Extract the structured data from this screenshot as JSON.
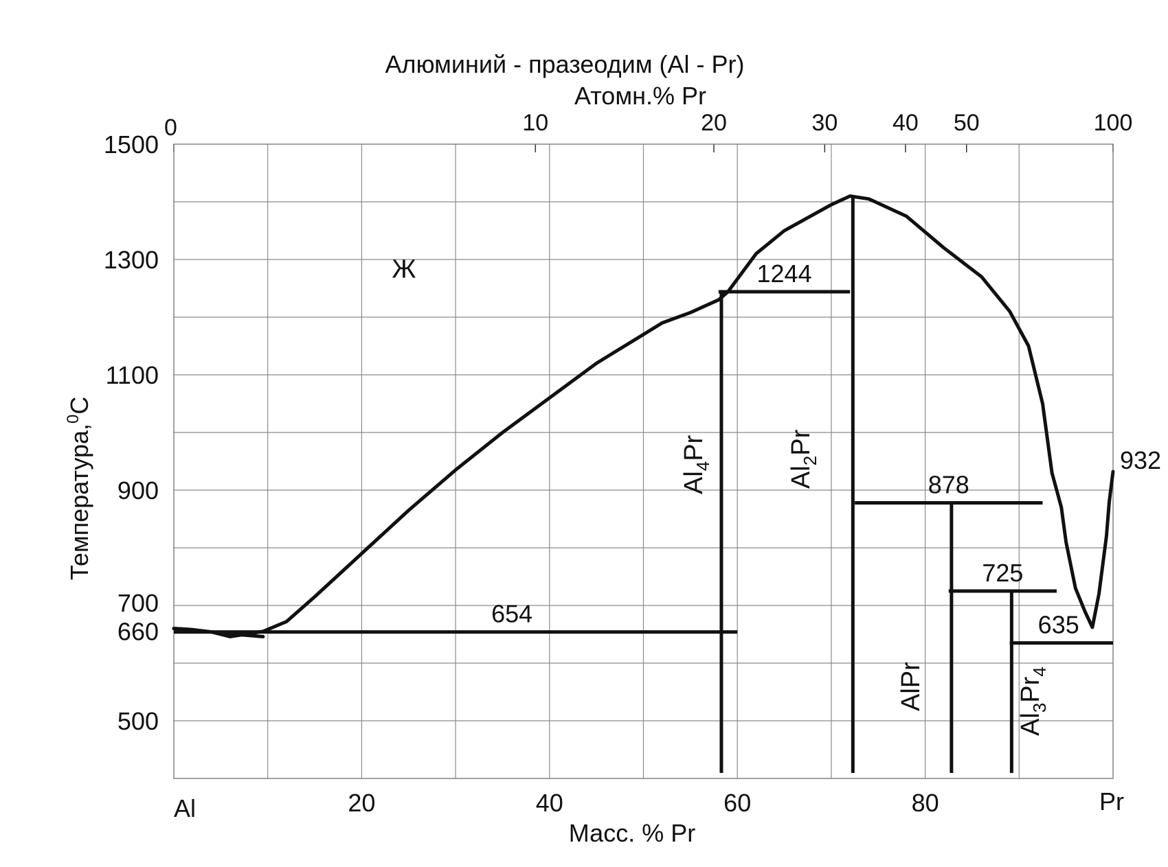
{
  "chart_data": {
    "type": "phase-diagram",
    "title": "Алюминий - празеодим (Al - Pr)",
    "top_axis": {
      "label": "Атомн.% Pr",
      "ticks": [
        {
          "label": "0",
          "wt": 0
        },
        {
          "label": "10",
          "wt": 38.5
        },
        {
          "label": "20",
          "wt": 57.5
        },
        {
          "label": "30",
          "wt": 69.3
        },
        {
          "label": "40",
          "wt": 77.9
        },
        {
          "label": "50",
          "wt": 84.4
        },
        {
          "label": "100",
          "wt": 100
        }
      ]
    },
    "x_axis": {
      "label": "Масс. % Pr",
      "range": [
        0,
        100
      ],
      "left_end_label": "Al",
      "right_end_label": "Pr",
      "ticks": [
        {
          "label": "20",
          "value": 20
        },
        {
          "label": "40",
          "value": 40
        },
        {
          "label": "60",
          "value": 60
        },
        {
          "label": "80",
          "value": 80
        }
      ]
    },
    "y_axis": {
      "label": "Температура,",
      "label_sup": "0",
      "label_unit": "C",
      "range": [
        400,
        1500
      ],
      "ticks": [
        {
          "label": "1500",
          "value": 1500
        },
        {
          "label": "1300",
          "value": 1300
        },
        {
          "label": "1100",
          "value": 1100
        },
        {
          "label": "900",
          "value": 900
        },
        {
          "label": "700",
          "value": 700
        },
        {
          "label": "660",
          "value": 660
        },
        {
          "label": "500",
          "value": 500
        }
      ]
    },
    "grid": true,
    "liquidus": [
      [
        0,
        660
      ],
      [
        2,
        658
      ],
      [
        4,
        654
      ],
      [
        6,
        646
      ],
      [
        9.5,
        655
      ],
      [
        12,
        672
      ],
      [
        15,
        715
      ],
      [
        20,
        790
      ],
      [
        25,
        865
      ],
      [
        30,
        935
      ],
      [
        35,
        1000
      ],
      [
        40,
        1060
      ],
      [
        45,
        1120
      ],
      [
        50,
        1170
      ],
      [
        52,
        1190
      ],
      [
        55,
        1208
      ],
      [
        58,
        1230
      ],
      [
        59,
        1244
      ],
      [
        62,
        1310
      ],
      [
        65,
        1350
      ],
      [
        70,
        1395
      ],
      [
        72,
        1410
      ],
      [
        74,
        1405
      ],
      [
        78,
        1375
      ],
      [
        82,
        1320
      ],
      [
        86,
        1270
      ],
      [
        89,
        1210
      ],
      [
        91,
        1150
      ],
      [
        92.5,
        1050
      ],
      [
        93.5,
        930
      ],
      [
        94.5,
        870
      ],
      [
        95,
        810
      ],
      [
        96,
        730
      ],
      [
        97,
        690
      ],
      [
        97.8,
        662
      ],
      [
        98.5,
        720
      ],
      [
        99.3,
        820
      ],
      [
        99.6,
        880
      ],
      [
        100,
        932
      ]
    ],
    "eutectic_al_side": [
      [
        0,
        660
      ],
      [
        2,
        658
      ],
      [
        5,
        652
      ],
      [
        9.5,
        646
      ]
    ],
    "isotherms": [
      {
        "label": "654",
        "temp": 654,
        "x_start": 0,
        "x_end": 60
      },
      {
        "label": "1244",
        "temp": 1244,
        "x_start": 58,
        "x_end": 72
      },
      {
        "label": "878",
        "temp": 878,
        "x_start": 72.5,
        "x_end": 92.5
      },
      {
        "label": "725",
        "temp": 725,
        "x_start": 82.5,
        "x_end": 94
      },
      {
        "label": "635",
        "temp": 635,
        "x_start": 89,
        "x_end": 100
      },
      {
        "label": "932",
        "temp": 932,
        "x_start": 100,
        "x_end": 100
      }
    ],
    "compounds": [
      {
        "label": "Al4Pr",
        "main": "Al",
        "sub1": "4",
        "rest": "Pr",
        "sub2": "",
        "x": 58.3,
        "top_temp": 1244
      },
      {
        "label": "Al2Pr",
        "main": "Al",
        "sub1": "2",
        "rest": "Pr",
        "sub2": "",
        "x": 72.3,
        "top_temp": 1410
      },
      {
        "label": "AlPr",
        "main": "AlPr",
        "sub1": "",
        "rest": "",
        "sub2": "",
        "x": 82.8,
        "top_temp": 878
      },
      {
        "label": "Al3Pr4",
        "main": "Al",
        "sub1": "3",
        "rest": "Pr",
        "sub2": "4",
        "x": 89.2,
        "top_temp": 725
      }
    ],
    "phase_labels": [
      {
        "label": "Ж",
        "x": 24.5,
        "temp": 1285
      }
    ]
  }
}
